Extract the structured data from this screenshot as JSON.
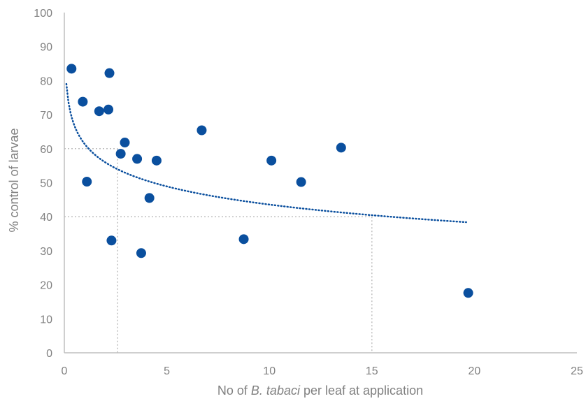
{
  "chart_data": {
    "type": "scatter",
    "title": "",
    "xlabel": {
      "prefix": "No of ",
      "italic": "B. tabaci",
      "suffix": " per leaf at application"
    },
    "ylabel": "% control of larvae",
    "xlim": [
      0,
      25
    ],
    "ylim": [
      0,
      100
    ],
    "xticks": [
      0,
      5,
      10,
      15,
      20,
      25
    ],
    "yticks": [
      0,
      10,
      20,
      30,
      40,
      50,
      60,
      70,
      80,
      90,
      100
    ],
    "grid": false,
    "legend": "none",
    "marker_color": "#0a4f9e",
    "axis_color": "#bfbfbf",
    "text_color": "#808080",
    "guide_color": "#bfbfbf",
    "points": [
      {
        "x": 0.35,
        "y": 83.5
      },
      {
        "x": 0.9,
        "y": 73.8
      },
      {
        "x": 1.1,
        "y": 50.3
      },
      {
        "x": 1.7,
        "y": 71.0
      },
      {
        "x": 2.2,
        "y": 82.2
      },
      {
        "x": 2.15,
        "y": 71.5
      },
      {
        "x": 2.3,
        "y": 33.0
      },
      {
        "x": 2.75,
        "y": 58.5
      },
      {
        "x": 2.95,
        "y": 61.8
      },
      {
        "x": 3.55,
        "y": 57.0
      },
      {
        "x": 3.75,
        "y": 29.3
      },
      {
        "x": 4.15,
        "y": 45.5
      },
      {
        "x": 4.5,
        "y": 56.5
      },
      {
        "x": 6.7,
        "y": 65.4
      },
      {
        "x": 8.75,
        "y": 33.4
      },
      {
        "x": 10.1,
        "y": 56.5
      },
      {
        "x": 11.55,
        "y": 50.2
      },
      {
        "x": 13.5,
        "y": 60.3
      },
      {
        "x": 19.7,
        "y": 17.6
      }
    ],
    "trendline": {
      "type": "logarithmic",
      "x_range": [
        0.1,
        19.6
      ],
      "coefficient_a": -7.7,
      "intercept_b": 61.3,
      "color": "#0a4f9e"
    },
    "reference_lines": [
      {
        "x": 2.6,
        "y": 60
      },
      {
        "x": 15,
        "y": 40
      }
    ]
  }
}
